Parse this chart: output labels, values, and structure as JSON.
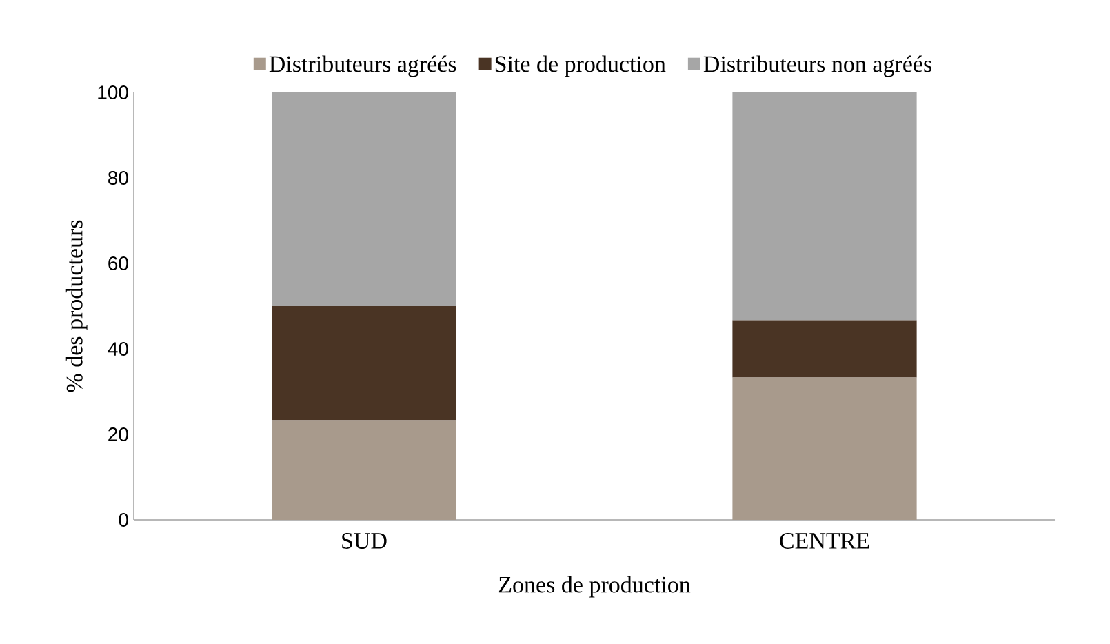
{
  "chart_data": {
    "type": "bar",
    "stacked": true,
    "xlabel": "Zones de production",
    "ylabel": "% des producteurs",
    "categories": [
      "SUD",
      "CENTRE"
    ],
    "series": [
      {
        "name": "Distributeurs agréés",
        "color": "#a89a8c",
        "values": [
          23.3,
          33.3
        ]
      },
      {
        "name": "Site de production",
        "color": "#4a3424",
        "values": [
          26.7,
          13.4
        ]
      },
      {
        "name": "Distributeurs non agréés",
        "color": "#a6a6a6",
        "values": [
          50,
          53.3
        ]
      }
    ],
    "ylim": [
      0,
      100
    ],
    "yticks": [
      0,
      20,
      40,
      60,
      80,
      100
    ],
    "legend": "top"
  }
}
